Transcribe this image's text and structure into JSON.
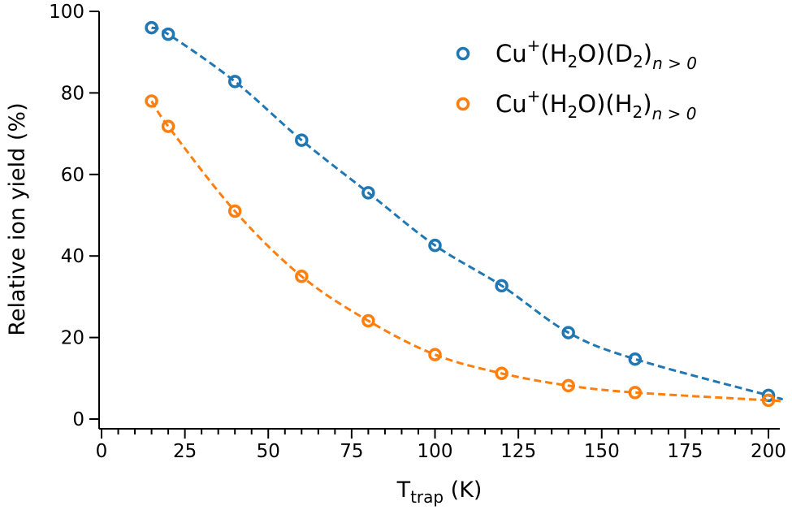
{
  "chart_data": {
    "type": "line",
    "x": [
      15,
      20,
      40,
      60,
      80,
      100,
      120,
      140,
      160,
      200
    ],
    "xlim": [
      0,
      202
    ],
    "ylim": [
      0,
      100
    ],
    "x_ticks": [
      0,
      25,
      50,
      75,
      100,
      125,
      150,
      175,
      200
    ],
    "y_ticks": [
      0,
      20,
      40,
      60,
      80,
      100
    ],
    "xlabel": {
      "main": "T",
      "sub": "trap",
      "unit": " (K)"
    },
    "ylabel": "Relative ion yield (%)",
    "legend_position": "top-right",
    "series": [
      {
        "name": "Cu+(H2O)(D2)n > 0",
        "name_parts": {
          "base": "Cu",
          "sup": "+",
          "p1": "(H",
          "s1": "2",
          "p2": "O)(D",
          "s2": "2",
          "p3": ")",
          "sub": "n > 0"
        },
        "color": "#1f77b4",
        "values": [
          96,
          94.4,
          82.8,
          68.4,
          55.5,
          42.6,
          32.7,
          21.2,
          14.7,
          5.8
        ]
      },
      {
        "name": "Cu+(H2O)(H2)n > 0",
        "name_parts": {
          "base": "Cu",
          "sup": "+",
          "p1": "(H",
          "s1": "2",
          "p2": "O)(H",
          "s2": "2",
          "p3": ")",
          "sub": "n > 0"
        },
        "color": "#ff7f0e",
        "values": [
          78,
          71.8,
          51,
          35,
          24.1,
          15.8,
          11.2,
          8.2,
          6.5,
          4.6
        ]
      }
    ]
  }
}
